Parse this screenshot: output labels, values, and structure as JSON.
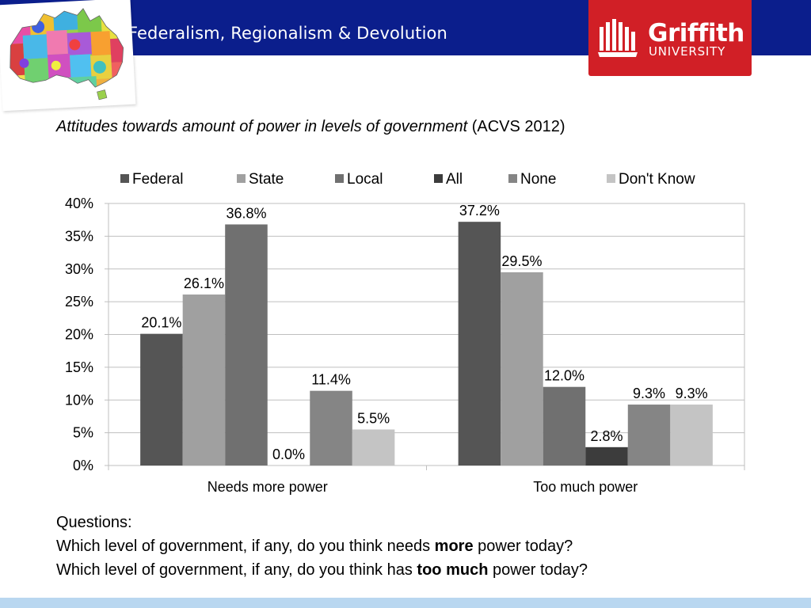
{
  "header": {
    "title": "Federalism, Regionalism & Devolution",
    "logo_name": "Griffith",
    "logo_sub": "UNIVERSITY",
    "logo_color": "#d11f26",
    "bar_color": "#0b1e8c"
  },
  "subtitle": {
    "italic": "Attitudes towards amount of power in levels of government",
    "plain": " (ACVS 2012)"
  },
  "chart_data": {
    "type": "bar",
    "categories": [
      "Needs more power",
      "Too much power"
    ],
    "series": [
      {
        "name": "Federal",
        "color": "#555555",
        "values": [
          20.1,
          37.2
        ]
      },
      {
        "name": "State",
        "color": "#a0a0a0",
        "values": [
          26.1,
          29.5
        ]
      },
      {
        "name": "Local",
        "color": "#707070",
        "values": [
          36.8,
          12.0
        ]
      },
      {
        "name": "All",
        "color": "#3c3c3c",
        "values": [
          0.0,
          2.8
        ]
      },
      {
        "name": "None",
        "color": "#858585",
        "values": [
          11.4,
          9.3
        ]
      },
      {
        "name": "Don't Know",
        "color": "#c4c4c4",
        "values": [
          5.5,
          9.3
        ]
      }
    ],
    "ylim": [
      0,
      40
    ],
    "yticks": [
      "0%",
      "5%",
      "10%",
      "15%",
      "20%",
      "25%",
      "30%",
      "35%",
      "40%"
    ],
    "value_labels": [
      [
        "20.1%",
        "37.2%"
      ],
      [
        "26.1%",
        "29.5%"
      ],
      [
        "36.8%",
        "12.0%"
      ],
      [
        "0.0%",
        "2.8%"
      ],
      [
        "11.4%",
        "9.3%"
      ],
      [
        "5.5%",
        "9.3%"
      ]
    ],
    "grid": true,
    "legend": "top"
  },
  "questions": {
    "heading": "Questions:",
    "q1_pre": "Which level of government, if any, do you think needs ",
    "q1_bold": "more",
    "q1_post": " power today?",
    "q2_pre": "Which level of government, if any, do you think has ",
    "q2_bold": "too much",
    "q2_post": " power today?"
  }
}
